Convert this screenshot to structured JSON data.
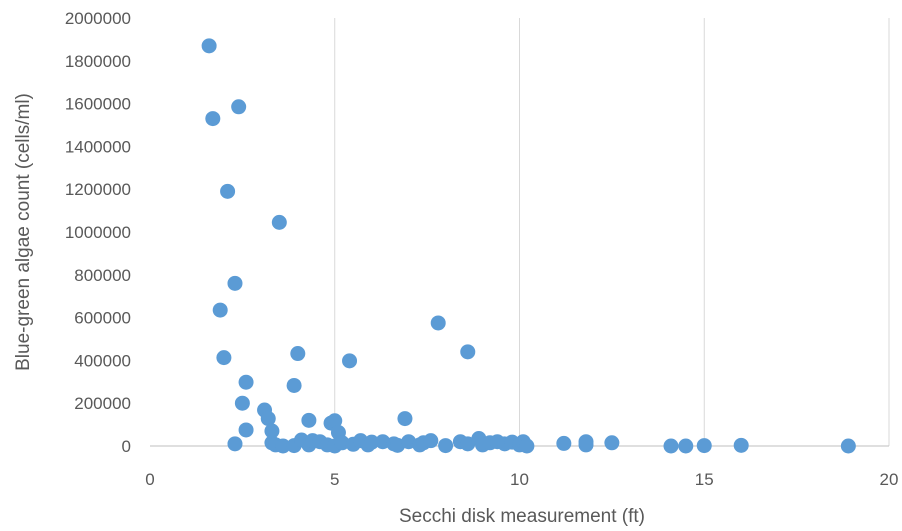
{
  "chart_data": {
    "type": "scatter",
    "title": "",
    "xlabel": "Secchi disk measurement (ft)",
    "ylabel": "Blue-green algae count (cells/ml)",
    "xlim": [
      0,
      20
    ],
    "ylim": [
      0,
      2000000
    ],
    "x_ticks": [
      0,
      5,
      10,
      15,
      20
    ],
    "y_ticks": [
      0,
      200000,
      400000,
      600000,
      800000,
      1000000,
      1200000,
      1400000,
      1600000,
      1800000,
      2000000
    ],
    "grid": "vertical",
    "legend": "none",
    "marker_color": "#5B9BD5",
    "points": [
      [
        1.6,
        1870000
      ],
      [
        1.7,
        1530000
      ],
      [
        2.4,
        1585000
      ],
      [
        2.1,
        1190000
      ],
      [
        3.5,
        1045000
      ],
      [
        2.3,
        760000
      ],
      [
        1.9,
        635000
      ],
      [
        7.8,
        575000
      ],
      [
        2.0,
        413000
      ],
      [
        4.0,
        432000
      ],
      [
        8.6,
        440000
      ],
      [
        5.4,
        398000
      ],
      [
        2.6,
        298000
      ],
      [
        3.9,
        283000
      ],
      [
        2.5,
        200000
      ],
      [
        3.1,
        168000
      ],
      [
        3.2,
        128000
      ],
      [
        4.3,
        120000
      ],
      [
        4.9,
        107000
      ],
      [
        5.0,
        118000
      ],
      [
        6.9,
        128000
      ],
      [
        2.6,
        75000
      ],
      [
        3.3,
        70000
      ],
      [
        5.1,
        63000
      ],
      [
        2.3,
        10000
      ],
      [
        3.3,
        15000
      ],
      [
        3.4,
        5000
      ],
      [
        3.6,
        0
      ],
      [
        3.9,
        2000
      ],
      [
        4.1,
        28000
      ],
      [
        4.3,
        5000
      ],
      [
        4.4,
        25000
      ],
      [
        4.6,
        20000
      ],
      [
        4.8,
        5000
      ],
      [
        5.0,
        0
      ],
      [
        5.2,
        15000
      ],
      [
        5.5,
        8000
      ],
      [
        5.7,
        25000
      ],
      [
        5.9,
        5000
      ],
      [
        6.0,
        18000
      ],
      [
        6.3,
        20000
      ],
      [
        6.6,
        10000
      ],
      [
        6.7,
        3000
      ],
      [
        7.0,
        20000
      ],
      [
        7.3,
        5000
      ],
      [
        7.4,
        15000
      ],
      [
        7.6,
        25000
      ],
      [
        8.0,
        2000
      ],
      [
        8.4,
        20000
      ],
      [
        8.6,
        10000
      ],
      [
        8.9,
        35000
      ],
      [
        9.0,
        5000
      ],
      [
        9.2,
        15000
      ],
      [
        9.4,
        20000
      ],
      [
        9.6,
        10000
      ],
      [
        9.8,
        18000
      ],
      [
        10.0,
        5000
      ],
      [
        10.1,
        20000
      ],
      [
        10.2,
        0
      ],
      [
        11.2,
        12000
      ],
      [
        11.8,
        5000
      ],
      [
        11.8,
        20000
      ],
      [
        12.5,
        15000
      ],
      [
        14.1,
        0
      ],
      [
        14.5,
        0
      ],
      [
        15.0,
        2000
      ],
      [
        16.0,
        3000
      ],
      [
        18.9,
        0
      ]
    ]
  }
}
